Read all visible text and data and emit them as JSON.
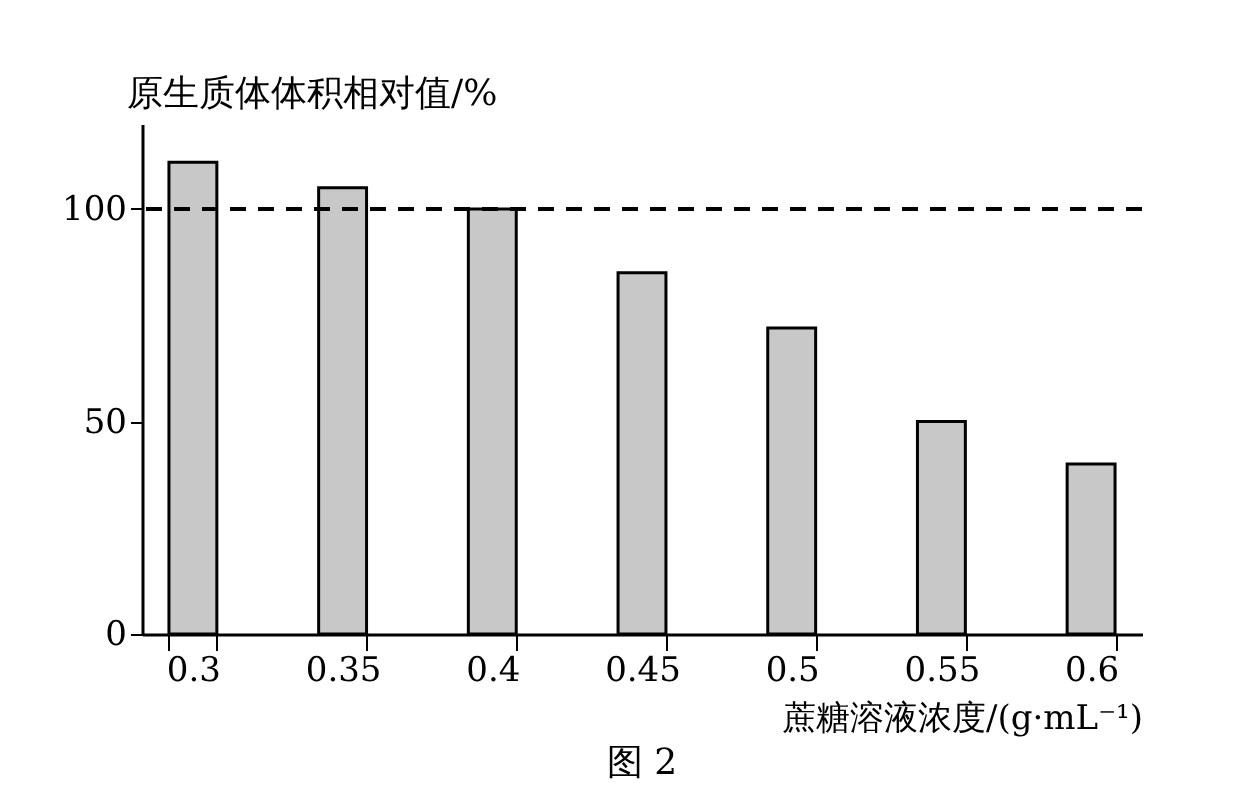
{
  "chart_data": {
    "type": "bar",
    "ylabel": "原生质体体积相对值/%",
    "xlabel": "蔗糖溶液浓度/(g·mL⁻¹)",
    "categories": [
      "0.3",
      "0.35",
      "0.4",
      "0.45",
      "0.5",
      "0.55",
      "0.6"
    ],
    "values": [
      111,
      105,
      100,
      85,
      72,
      50,
      40
    ],
    "color": "#c8c8c8",
    "ylim": [
      0,
      120
    ],
    "yticks": [
      0,
      50,
      100
    ],
    "ref_lines": [
      {
        "axis": "y",
        "value": 100,
        "line_style": "dashed"
      }
    ],
    "annotations": [
      "图 2"
    ]
  }
}
